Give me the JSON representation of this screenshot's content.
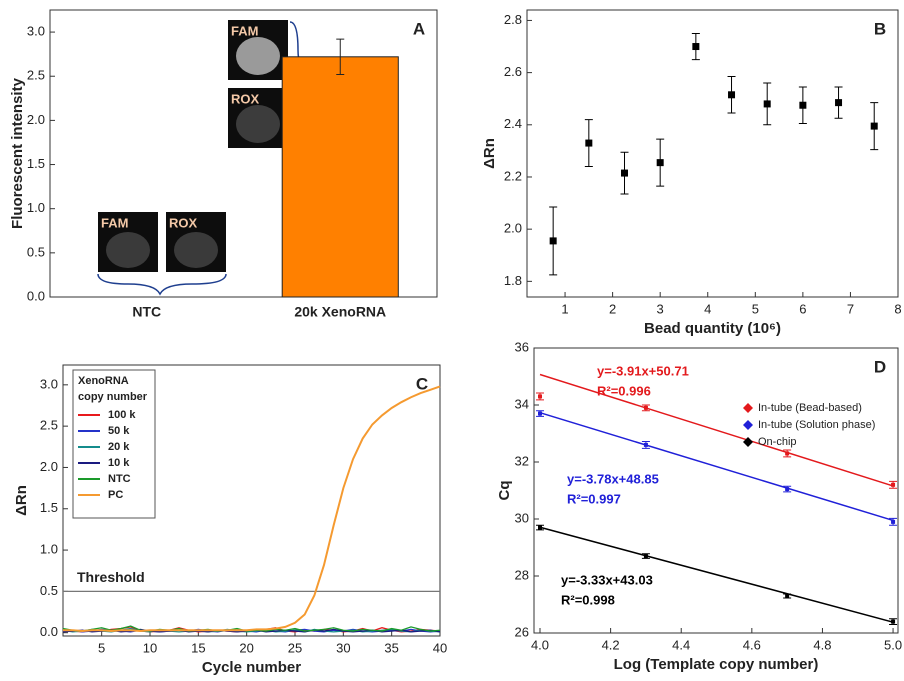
{
  "chart_data": [
    {
      "type": "bar",
      "panel_label": "A",
      "ylabel": "Fluorescent intensity",
      "categories": [
        "NTC",
        "20k XenoRNA"
      ],
      "values": [
        0,
        2.72
      ],
      "errors": [
        null,
        0.2
      ],
      "color": "#ff8000",
      "ylim": [
        0,
        3.25
      ],
      "yticks": [
        {
          "value": 0,
          "label": "0.0"
        },
        0.5,
        {
          "value": 1,
          "label": "1.0"
        },
        1.5,
        {
          "value": 2,
          "label": "2.0"
        },
        2.5,
        {
          "value": 3,
          "label": "3.0"
        }
      ],
      "image_labels": [
        "FAM",
        "ROX",
        "FAM",
        "ROX"
      ]
    },
    {
      "type": "scatter",
      "panel_label": "B",
      "ylabel": "ΔRn",
      "xlabel": "Bead quantity (10⁶)",
      "x": [
        0.75,
        1.5,
        2.25,
        3,
        3.75,
        4.5,
        5.25,
        6,
        6.75,
        7.5
      ],
      "values": [
        1.955,
        2.33,
        2.215,
        2.255,
        2.7,
        2.515,
        2.48,
        2.475,
        2.485,
        2.395
      ],
      "errors": [
        0.13,
        0.09,
        0.08,
        0.09,
        0.05,
        0.07,
        0.08,
        0.07,
        0.06,
        0.09
      ],
      "color": "#000000",
      "marker": "square",
      "xlim": [
        0.2,
        8
      ],
      "xticks": [
        1,
        2,
        3,
        4,
        5,
        6,
        7,
        8
      ],
      "ylim": [
        1.74,
        2.84
      ],
      "yticks": [
        1.8,
        {
          "value": 2,
          "label": "2.0"
        },
        2.2,
        2.4,
        2.6,
        2.8
      ]
    },
    {
      "type": "line",
      "panel_label": "C",
      "ylabel": "ΔRn",
      "xlabel": "Cycle number",
      "legend": "upper left",
      "legend_title": [
        "XenoRNA",
        "copy number"
      ],
      "threshold": 0.5,
      "threshold_label": "Threshold",
      "x": [
        1,
        2,
        3,
        4,
        5,
        6,
        7,
        8,
        9,
        10,
        11,
        12,
        13,
        14,
        15,
        16,
        17,
        18,
        19,
        20,
        21,
        22,
        23,
        24,
        25,
        26,
        27,
        28,
        29,
        30,
        31,
        32,
        33,
        34,
        35,
        36,
        37,
        38,
        39,
        40
      ],
      "series": [
        {
          "name": "100 k",
          "color": "#e8191c",
          "values": [
            0.04,
            0.02,
            0.01,
            0.03,
            0.02,
            0.04,
            0.05,
            0.07,
            0.02,
            0.01,
            0.02,
            0.03,
            0.06,
            0.03,
            0.01,
            0.02,
            0.03,
            0.02,
            0.01,
            0.03,
            0.02,
            0.04,
            0.06,
            0.02,
            0.01,
            0.03,
            0.02,
            0.04,
            0.03,
            0.01,
            0.02,
            0.05,
            0.02,
            0.06,
            0.03,
            0.01,
            0.02,
            0.04,
            0.03,
            0.02
          ]
        },
        {
          "name": "50 k",
          "color": "#2433c9",
          "values": [
            0.02,
            0.03,
            0.01,
            0.02,
            0.04,
            0.03,
            0.02,
            0.01,
            0.03,
            0.02,
            0.01,
            0.02,
            0.03,
            0.02,
            0.04,
            0.02,
            0.01,
            0.03,
            0.02,
            0.02,
            0.01,
            0.03,
            0.02,
            0.01,
            0.03,
            0.04,
            0.02,
            0.01,
            0.03,
            0.02,
            0.04,
            0.02,
            0.01,
            0.02,
            0.03,
            0.02,
            0.04,
            0.02,
            0.01,
            0.02
          ]
        },
        {
          "name": "20 k",
          "color": "#148c8c",
          "values": [
            0.03,
            0.01,
            0.02,
            0.04,
            0.02,
            0.01,
            0.03,
            0.05,
            0.02,
            0.01,
            0.03,
            0.02,
            0.01,
            0.02,
            0.03,
            0.01,
            0.02,
            0.04,
            0.02,
            0.01,
            0.02,
            0.03,
            0.01,
            0.02,
            0.03,
            0.01,
            0.04,
            0.02,
            0.01,
            0.02,
            0.03,
            0.01,
            0.02,
            0.03,
            0.04,
            0.02,
            0.01,
            0.03,
            0.02,
            0.01
          ]
        },
        {
          "name": "10 k",
          "color": "#1a1a80",
          "values": [
            0.01,
            0.02,
            0.03,
            0.01,
            0.02,
            0.03,
            0.01,
            0.02,
            0.04,
            0.02,
            0.01,
            0.02,
            0.03,
            0.01,
            0.02,
            0.01,
            0.03,
            0.02,
            0.01,
            0.02,
            0.03,
            0.01,
            0.02,
            0.03,
            0.02,
            0.01,
            0.03,
            0.02,
            0.04,
            0.02,
            0.01,
            0.02,
            0.03,
            0.01,
            0.02,
            0.03,
            0.01,
            0.02,
            0.03,
            0.01
          ]
        },
        {
          "name": "NTC",
          "color": "#1a9a2a",
          "values": [
            0.05,
            0.03,
            0.02,
            0.04,
            0.06,
            0.03,
            0.05,
            0.08,
            0.03,
            0.02,
            0.04,
            0.03,
            0.05,
            0.02,
            0.03,
            0.04,
            0.02,
            0.03,
            0.05,
            0.02,
            0.03,
            0.02,
            0.04,
            0.03,
            0.05,
            0.02,
            0.03,
            0.04,
            0.06,
            0.03,
            0.02,
            0.04,
            0.03,
            0.02,
            0.05,
            0.03,
            0.07,
            0.04,
            0.02,
            0.03
          ]
        },
        {
          "name": "PC",
          "color": "#f59a30",
          "values": [
            0.03,
            0.03,
            0.02,
            0.03,
            0.03,
            0.02,
            0.03,
            0.03,
            0.02,
            0.03,
            0.03,
            0.03,
            0.03,
            0.03,
            0.03,
            0.03,
            0.03,
            0.03,
            0.03,
            0.03,
            0.04,
            0.04,
            0.05,
            0.07,
            0.12,
            0.22,
            0.45,
            0.82,
            1.3,
            1.75,
            2.1,
            2.35,
            2.52,
            2.63,
            2.72,
            2.79,
            2.85,
            2.9,
            2.94,
            2.98
          ]
        }
      ],
      "xlim": [
        1,
        40
      ],
      "xticks": [
        5,
        10,
        15,
        20,
        25,
        30,
        35,
        40
      ],
      "ylim": [
        -0.04,
        3.24
      ],
      "yticks": [
        {
          "value": 0,
          "label": "0.0"
        },
        0.5,
        {
          "value": 1,
          "label": "1.0"
        },
        1.5,
        {
          "value": 2,
          "label": "2.0"
        },
        2.5,
        {
          "value": 3,
          "label": "3.0"
        }
      ]
    },
    {
      "type": "scatter",
      "panel_label": "D",
      "ylabel": "Cq",
      "xlabel": "Log (Template copy number)",
      "legend": "upper right",
      "x": [
        4,
        4.3,
        4.7,
        5
      ],
      "series": [
        {
          "name": "In-tube (Bead-based)",
          "color": "#e3191c",
          "marker": "square",
          "values": [
            34.3,
            33.9,
            32.3,
            31.2
          ],
          "errors": [
            0.12,
            0.1,
            0.12,
            0.12
          ],
          "fit": {
            "slope": -3.91,
            "intercept": 50.71,
            "label": "y=-3.91x+50.71",
            "r2_label": "R²=0.996"
          }
        },
        {
          "name": "In-tube (Solution phase)",
          "color": "#2020d8",
          "marker": "square",
          "values": [
            33.7,
            32.6,
            31.05,
            29.9
          ],
          "errors": [
            0.1,
            0.12,
            0.1,
            0.12
          ],
          "fit": {
            "slope": -3.78,
            "intercept": 48.85,
            "label": "y=-3.78x+48.85",
            "r2_label": "R²=0.997"
          }
        },
        {
          "name": "On-chip",
          "color": "#000000",
          "marker": "square",
          "values": [
            29.7,
            28.7,
            27.3,
            26.4
          ],
          "errors": [
            0.08,
            0.08,
            0.07,
            0.1
          ],
          "fit": {
            "slope": -3.33,
            "intercept": 43.03,
            "label": "y=-3.33x+43.03",
            "r2_label": "R²=0.998"
          }
        }
      ],
      "xlim": [
        3.983,
        5.014
      ],
      "xticks": [
        {
          "value": 4,
          "label": "4.0"
        },
        4.2,
        4.4,
        4.6,
        4.8,
        {
          "value": 5,
          "label": "5.0"
        }
      ],
      "ylim": [
        26,
        36
      ],
      "yticks": [
        26,
        28,
        30,
        32,
        34,
        36
      ]
    }
  ]
}
